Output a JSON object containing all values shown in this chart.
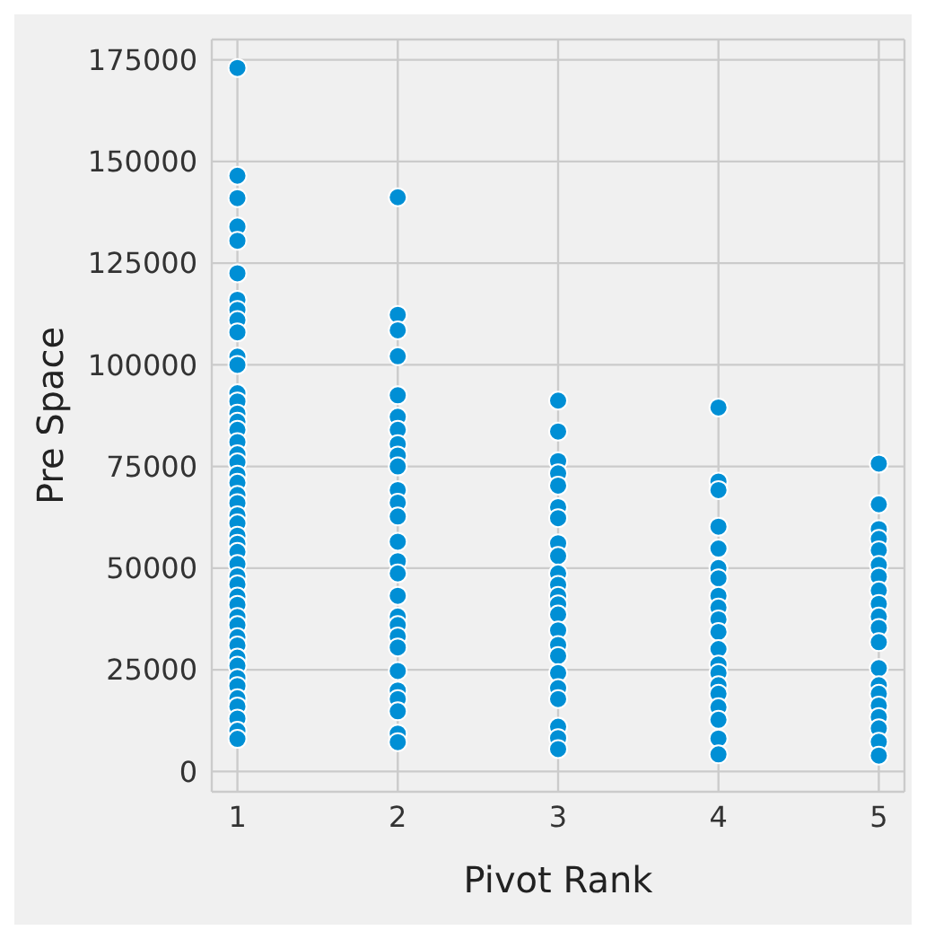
{
  "chart_data": {
    "type": "scatter",
    "xlabel": "Pivot Rank",
    "ylabel": "Pre Space",
    "xlim": [
      0.84,
      5.16
    ],
    "xticks": [
      1,
      2,
      3,
      4,
      5
    ],
    "ylim": [
      -5000,
      180000
    ],
    "yticks": [
      0,
      25000,
      50000,
      75000,
      100000,
      125000,
      150000,
      175000
    ],
    "grid": true,
    "marker": "circle",
    "series": [
      {
        "color": "#008fd5",
        "x": [
          1,
          1,
          1,
          1,
          1,
          1,
          1,
          1,
          1,
          1,
          1,
          1,
          1,
          1,
          1,
          1,
          1,
          1,
          1,
          1,
          1,
          1,
          1,
          1,
          1,
          1,
          1,
          1,
          1,
          1,
          1,
          1,
          1,
          1,
          1,
          1,
          1,
          1,
          1,
          1,
          1,
          1,
          1,
          1,
          1,
          1,
          1,
          2,
          2,
          2,
          2,
          2,
          2,
          2,
          2,
          2,
          2,
          2,
          2,
          2,
          2,
          2,
          2,
          2,
          2,
          2,
          2,
          2,
          2,
          2,
          2,
          2,
          2,
          2,
          3,
          3,
          3,
          3,
          3,
          3,
          3,
          3,
          3,
          3,
          3,
          3,
          3,
          3,
          3,
          3,
          3,
          3,
          3,
          3,
          3,
          3,
          3,
          4,
          4,
          4,
          4,
          4,
          4,
          4,
          4,
          4,
          4,
          4,
          4,
          4,
          4,
          4,
          4,
          4,
          4,
          4,
          4,
          5,
          5,
          5,
          5,
          5,
          5,
          5,
          5,
          5,
          5,
          5,
          5,
          5,
          5,
          5,
          5,
          5,
          5,
          5,
          5
        ],
        "values": [
          173000,
          146500,
          141000,
          134000,
          130500,
          122500,
          116000,
          113500,
          111000,
          108000,
          102000,
          100000,
          93000,
          91000,
          88000,
          86000,
          84000,
          81000,
          78000,
          76000,
          73000,
          71000,
          68000,
          66000,
          63000,
          61000,
          58000,
          56000,
          54000,
          51000,
          48000,
          46000,
          43000,
          41000,
          38000,
          36000,
          33000,
          31000,
          28000,
          26000,
          23000,
          21000,
          18000,
          16000,
          13000,
          10000,
          8000,
          141200,
          112300,
          108500,
          102100,
          92500,
          87200,
          84000,
          80500,
          77700,
          75000,
          69200,
          66100,
          62700,
          56500,
          51700,
          48700,
          43200,
          38100,
          36000,
          33200,
          30500,
          24700,
          19900,
          17800,
          14800,
          9300,
          7200,
          91200,
          83600,
          76300,
          73300,
          70300,
          65000,
          62300,
          56100,
          53000,
          48700,
          45900,
          43200,
          41100,
          38600,
          34700,
          31100,
          28400,
          24200,
          20500,
          17800,
          11000,
          8200,
          5500,
          89500,
          71300,
          69200,
          60200,
          54800,
          50000,
          47500,
          43200,
          40300,
          37400,
          34300,
          30100,
          26300,
          24200,
          21200,
          19100,
          15800,
          12700,
          8100,
          4200,
          75700,
          65700,
          59600,
          57200,
          54400,
          50800,
          47900,
          44500,
          41200,
          38100,
          35300,
          31800,
          25400,
          21200,
          19100,
          16200,
          13400,
          10600,
          7300,
          3900
        ]
      }
    ]
  }
}
